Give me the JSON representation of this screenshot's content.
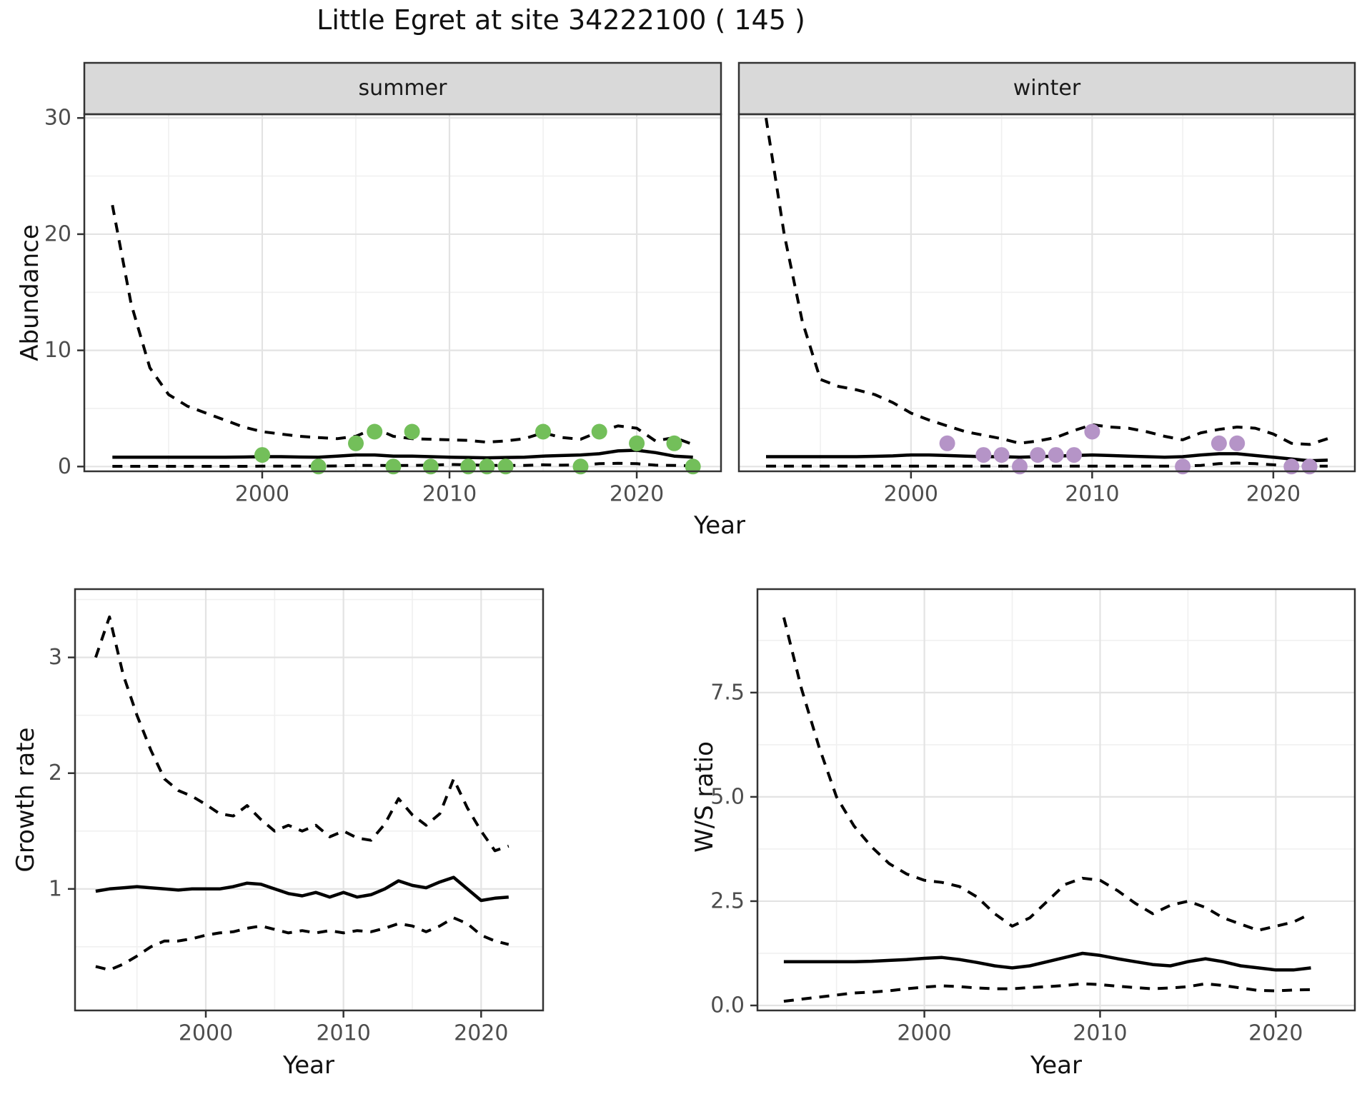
{
  "title": "Little Egret at site 34222100 ( 145 )",
  "colors": {
    "summer_point": "#73bf5a",
    "winter_point": "#b594c7",
    "strip_fill": "#d9d9d9",
    "panel_border": "#333333",
    "grid_major": "#e3e3e3",
    "grid_minor": "#f0f0f0",
    "line": "#000000",
    "tick_text": "#4d4d4d",
    "tick_mark": "#333333"
  },
  "chart_data": [
    {
      "id": "abundance-summer",
      "type": "line",
      "facet_label": "summer",
      "ylabel": "Abundance",
      "xlabel": "Year",
      "xlim": [
        1990.5,
        2024.5
      ],
      "ylim": [
        -0.41,
        30.32
      ],
      "xticks": [
        2000,
        2010,
        2020
      ],
      "xtick_labels": [
        "2000",
        "2010",
        "2020"
      ],
      "xticks_minor": [
        1995,
        2005,
        2015
      ],
      "yticks": [
        0,
        10,
        20,
        30
      ],
      "ytick_labels": [
        "0",
        "10",
        "20",
        "30"
      ],
      "yticks_minor": [
        5,
        15,
        25
      ],
      "x": [
        1992,
        1993,
        1994,
        1995,
        1996,
        1997,
        1998,
        1999,
        2000,
        2001,
        2002,
        2003,
        2004,
        2005,
        2006,
        2007,
        2008,
        2009,
        2010,
        2011,
        2012,
        2013,
        2014,
        2015,
        2016,
        2017,
        2018,
        2019,
        2020,
        2021,
        2022,
        2023
      ],
      "series": [
        {
          "name": "fit",
          "style": "solid",
          "values": [
            0.8,
            0.8,
            0.8,
            0.8,
            0.8,
            0.8,
            0.8,
            0.82,
            0.85,
            0.85,
            0.82,
            0.8,
            0.9,
            1.0,
            1.0,
            0.9,
            0.9,
            0.85,
            0.8,
            0.78,
            0.75,
            0.78,
            0.8,
            0.9,
            0.95,
            1.0,
            1.1,
            1.35,
            1.4,
            1.2,
            0.9,
            0.8
          ]
        },
        {
          "name": "upper_ci",
          "style": "dashed",
          "values": [
            22.5,
            14.0,
            8.5,
            6.2,
            5.2,
            4.6,
            4.0,
            3.4,
            3.0,
            2.8,
            2.6,
            2.5,
            2.4,
            2.6,
            3.3,
            2.6,
            2.4,
            2.35,
            2.3,
            2.25,
            2.1,
            2.2,
            2.4,
            2.9,
            2.5,
            2.35,
            3.0,
            3.5,
            3.3,
            2.2,
            2.5,
            1.9
          ]
        },
        {
          "name": "lower_ci",
          "style": "dashed",
          "values": [
            0.02,
            0.02,
            0.02,
            0.02,
            0.02,
            0.02,
            0.02,
            0.02,
            0.03,
            0.03,
            0.03,
            0.03,
            0.05,
            0.1,
            0.1,
            0.08,
            0.1,
            0.12,
            0.18,
            0.15,
            0.1,
            0.1,
            0.1,
            0.15,
            0.12,
            0.15,
            0.25,
            0.28,
            0.25,
            0.12,
            0.1,
            0.05
          ]
        }
      ],
      "points": [
        [
          2000,
          1
        ],
        [
          2003,
          0
        ],
        [
          2005,
          2
        ],
        [
          2006,
          3
        ],
        [
          2007,
          0
        ],
        [
          2008,
          3
        ],
        [
          2009,
          0
        ],
        [
          2011,
          0
        ],
        [
          2012,
          0
        ],
        [
          2013,
          0
        ],
        [
          2015,
          3
        ],
        [
          2017,
          0
        ],
        [
          2018,
          3
        ],
        [
          2020,
          2
        ],
        [
          2022,
          2
        ],
        [
          2023,
          0
        ]
      ],
      "point_color_key": "summer_point"
    },
    {
      "id": "abundance-winter",
      "type": "line",
      "facet_label": "winter",
      "ylabel": "Abundance",
      "xlabel": "Year",
      "xlim": [
        1990.5,
        2024.5
      ],
      "ylim": [
        -0.41,
        30.32
      ],
      "xticks": [
        2000,
        2010,
        2020
      ],
      "xtick_labels": [
        "2000",
        "2010",
        "2020"
      ],
      "xticks_minor": [
        1995,
        2005,
        2015
      ],
      "yticks": [
        0,
        10,
        20,
        30
      ],
      "ytick_labels": [
        "0",
        "10",
        "20",
        "30"
      ],
      "yticks_minor": [
        5,
        15,
        25
      ],
      "x": [
        1992,
        1993,
        1994,
        1995,
        1996,
        1997,
        1998,
        1999,
        2000,
        2001,
        2002,
        2003,
        2004,
        2005,
        2006,
        2007,
        2008,
        2009,
        2010,
        2011,
        2012,
        2013,
        2014,
        2015,
        2016,
        2017,
        2018,
        2019,
        2020,
        2021,
        2022,
        2023
      ],
      "series": [
        {
          "name": "fit",
          "style": "solid",
          "values": [
            0.85,
            0.85,
            0.85,
            0.85,
            0.85,
            0.85,
            0.88,
            0.92,
            1.0,
            1.0,
            0.95,
            0.9,
            0.85,
            0.85,
            0.8,
            0.85,
            0.9,
            0.95,
            1.0,
            0.95,
            0.9,
            0.85,
            0.8,
            0.85,
            1.0,
            1.1,
            1.1,
            0.95,
            0.8,
            0.65,
            0.5,
            0.55
          ]
        },
        {
          "name": "upper_ci",
          "style": "dashed",
          "values": [
            30.0,
            20.0,
            12.5,
            7.5,
            6.9,
            6.6,
            6.2,
            5.5,
            4.6,
            4.0,
            3.5,
            3.0,
            2.7,
            2.4,
            2.0,
            2.2,
            2.5,
            3.1,
            3.6,
            3.4,
            3.3,
            3.0,
            2.6,
            2.3,
            2.9,
            3.2,
            3.4,
            3.3,
            2.8,
            2.0,
            1.9,
            2.4
          ]
        },
        {
          "name": "lower_ci",
          "style": "dashed",
          "values": [
            0.03,
            0.03,
            0.03,
            0.03,
            0.03,
            0.03,
            0.03,
            0.03,
            0.03,
            0.03,
            0.03,
            0.03,
            0.03,
            0.03,
            0.03,
            0.03,
            0.03,
            0.03,
            0.03,
            0.03,
            0.03,
            0.03,
            0.03,
            0.05,
            0.1,
            0.25,
            0.3,
            0.25,
            0.15,
            0.05,
            0.04,
            0.04
          ]
        }
      ],
      "points": [
        [
          2002,
          2
        ],
        [
          2004,
          1
        ],
        [
          2005,
          1
        ],
        [
          2006,
          0
        ],
        [
          2007,
          1
        ],
        [
          2008,
          1
        ],
        [
          2009,
          1
        ],
        [
          2010,
          3
        ],
        [
          2015,
          0
        ],
        [
          2017,
          2
        ],
        [
          2018,
          2
        ],
        [
          2021,
          0
        ],
        [
          2022,
          0
        ]
      ],
      "point_color_key": "winter_point"
    },
    {
      "id": "growth-rate",
      "type": "line",
      "facet_label": "",
      "ylabel": "Growth rate",
      "xlabel": "Year",
      "xlim": [
        1990.5,
        2024.5
      ],
      "ylim": [
        -0.05,
        3.59
      ],
      "xticks": [
        2000,
        2010,
        2020
      ],
      "xtick_labels": [
        "2000",
        "2010",
        "2020"
      ],
      "xticks_minor": [
        1995,
        2005,
        2015
      ],
      "yticks": [
        1,
        2,
        3
      ],
      "ytick_labels": [
        "1",
        "2",
        "3"
      ],
      "yticks_minor": [
        0.5,
        1.5,
        2.5,
        3.5
      ],
      "x": [
        1992,
        1993,
        1994,
        1995,
        1996,
        1997,
        1998,
        1999,
        2000,
        2001,
        2002,
        2003,
        2004,
        2005,
        2006,
        2007,
        2008,
        2009,
        2010,
        2011,
        2012,
        2013,
        2014,
        2015,
        2016,
        2017,
        2018,
        2019,
        2020,
        2021,
        2022
      ],
      "series": [
        {
          "name": "fit",
          "style": "solid",
          "values": [
            0.98,
            1.0,
            1.01,
            1.02,
            1.01,
            1.0,
            0.99,
            1.0,
            1.0,
            1.0,
            1.02,
            1.05,
            1.04,
            1.0,
            0.96,
            0.94,
            0.97,
            0.93,
            0.97,
            0.93,
            0.95,
            1.0,
            1.07,
            1.03,
            1.01,
            1.06,
            1.1,
            1.0,
            0.9,
            0.92,
            0.93
          ]
        },
        {
          "name": "upper_ci",
          "style": "dashed",
          "values": [
            3.0,
            3.35,
            2.85,
            2.5,
            2.2,
            1.95,
            1.85,
            1.8,
            1.73,
            1.65,
            1.63,
            1.72,
            1.6,
            1.5,
            1.55,
            1.5,
            1.55,
            1.45,
            1.5,
            1.44,
            1.42,
            1.56,
            1.78,
            1.64,
            1.55,
            1.65,
            1.95,
            1.7,
            1.5,
            1.33,
            1.37
          ]
        },
        {
          "name": "lower_ci",
          "style": "dashed",
          "values": [
            0.33,
            0.3,
            0.35,
            0.42,
            0.5,
            0.55,
            0.55,
            0.57,
            0.6,
            0.62,
            0.63,
            0.66,
            0.68,
            0.65,
            0.62,
            0.64,
            0.62,
            0.64,
            0.62,
            0.64,
            0.63,
            0.66,
            0.7,
            0.68,
            0.63,
            0.68,
            0.75,
            0.7,
            0.6,
            0.55,
            0.52
          ]
        }
      ],
      "points": [],
      "point_color_key": "summer_point"
    },
    {
      "id": "ws-ratio",
      "type": "line",
      "facet_label": "",
      "ylabel": "W/S ratio",
      "xlabel": "Year",
      "xlim": [
        1990.5,
        2024.5
      ],
      "ylim": [
        -0.12,
        9.98
      ],
      "xticks": [
        2000,
        2010,
        2020
      ],
      "xtick_labels": [
        "2000",
        "2010",
        "2020"
      ],
      "xticks_minor": [
        1995,
        2005,
        2015
      ],
      "yticks": [
        0,
        2.5,
        5,
        7.5
      ],
      "ytick_labels": [
        "0.0",
        "2.5",
        "5.0",
        "7.5"
      ],
      "yticks_minor": [
        1.25,
        3.75,
        6.25,
        8.75
      ],
      "x": [
        1992,
        1993,
        1994,
        1995,
        1996,
        1997,
        1998,
        1999,
        2000,
        2001,
        2002,
        2003,
        2004,
        2005,
        2006,
        2007,
        2008,
        2009,
        2010,
        2011,
        2012,
        2013,
        2014,
        2015,
        2016,
        2017,
        2018,
        2019,
        2020,
        2021,
        2022
      ],
      "series": [
        {
          "name": "fit",
          "style": "solid",
          "values": [
            1.05,
            1.05,
            1.05,
            1.05,
            1.05,
            1.06,
            1.08,
            1.1,
            1.13,
            1.15,
            1.1,
            1.03,
            0.95,
            0.9,
            0.95,
            1.05,
            1.15,
            1.25,
            1.2,
            1.12,
            1.05,
            0.98,
            0.95,
            1.05,
            1.12,
            1.05,
            0.95,
            0.9,
            0.85,
            0.85,
            0.9
          ]
        },
        {
          "name": "upper_ci",
          "style": "dashed",
          "values": [
            9.3,
            7.6,
            6.2,
            5.0,
            4.3,
            3.8,
            3.4,
            3.15,
            3.0,
            2.95,
            2.85,
            2.6,
            2.2,
            1.9,
            2.1,
            2.5,
            2.9,
            3.05,
            3.0,
            2.75,
            2.45,
            2.2,
            2.4,
            2.5,
            2.35,
            2.1,
            1.95,
            1.8,
            1.9,
            2.0,
            2.2
          ]
        },
        {
          "name": "lower_ci",
          "style": "dashed",
          "values": [
            0.1,
            0.15,
            0.2,
            0.25,
            0.3,
            0.32,
            0.35,
            0.4,
            0.44,
            0.47,
            0.45,
            0.42,
            0.4,
            0.4,
            0.43,
            0.45,
            0.48,
            0.52,
            0.5,
            0.46,
            0.43,
            0.4,
            0.42,
            0.45,
            0.52,
            0.48,
            0.42,
            0.36,
            0.35,
            0.37,
            0.38
          ]
        }
      ],
      "points": [],
      "point_color_key": "winter_point"
    }
  ]
}
